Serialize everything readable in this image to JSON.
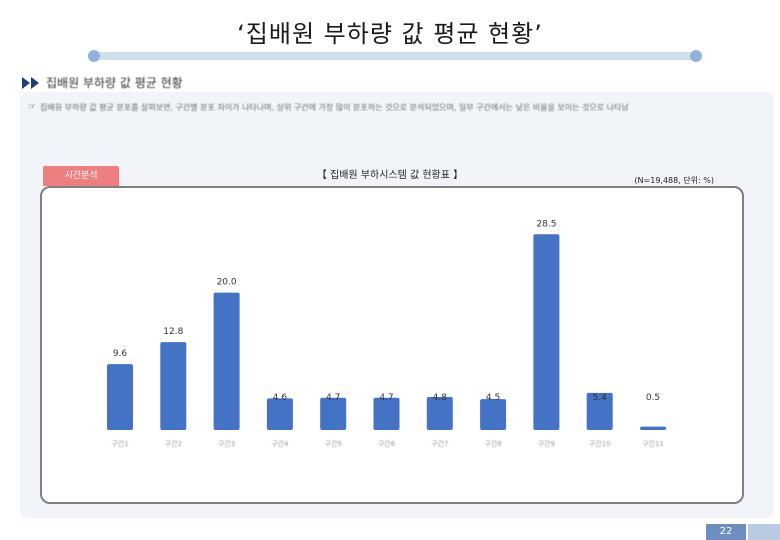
{
  "page": {
    "title": "‘집배원 부하량 값 평균 현황’",
    "section_title": "집배원 부하량 값 평균 현황",
    "note_mark": "☞",
    "note_text": "집배원 부하량 값 평균 분포를 살펴보면, 구간별 분포 차이가 나타나며, 상위 구간에 가장 많이 분포하는 것으로 분석되었으며, 일부 구간에서는 낮은 비율을 보이는 것으로 나타남",
    "tab_label": "시간분석",
    "chart_title": "【 집배원 부하시스템 값 현황표 】",
    "chart_meta": "(N=19,488, 단위: %)",
    "page_number": "22"
  },
  "chart_data": {
    "type": "bar",
    "title": "【 집배원 부하시스템 값 현황표 】",
    "xlabel": "",
    "ylabel": "",
    "ylim": [
      0,
      30
    ],
    "categories": [
      "구간1",
      "구간2",
      "구간3",
      "구간4",
      "구간5",
      "구간6",
      "구간7",
      "구간8",
      "구간9",
      "구간10",
      "구간11"
    ],
    "values": [
      9.6,
      12.8,
      20.0,
      4.6,
      4.7,
      4.7,
      4.8,
      4.5,
      28.5,
      5.4,
      0.5
    ],
    "value_labels": [
      "9.6",
      "12.8",
      "20.0",
      "4.6",
      "4.7",
      "4.7",
      "4.8",
      "4.5",
      "28.5",
      "5.4",
      "0.5"
    ],
    "bar_color": "#4472c4",
    "grid": false
  }
}
